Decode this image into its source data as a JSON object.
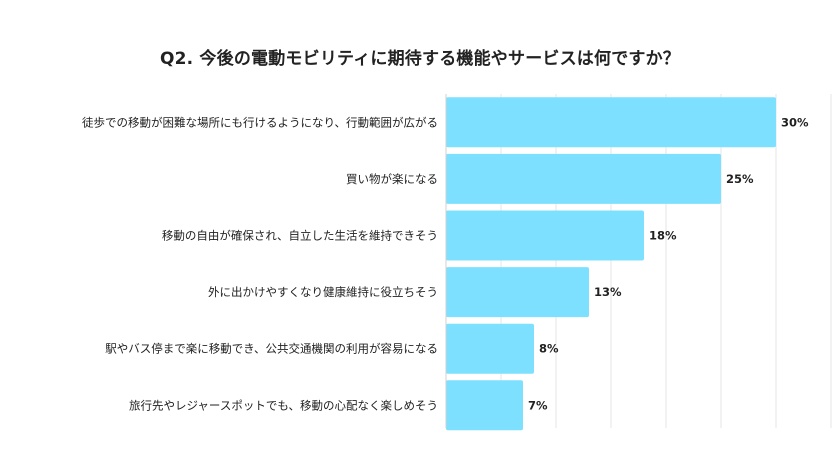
{
  "chart_data": {
    "type": "bar",
    "orientation": "horizontal",
    "title": "Q2. 今後の電動モビリティに期待する機能やサービスは何ですか？",
    "categories": [
      "徒歩での移動が困難な場所にも行けるようになり、行動範囲が広がる",
      "買い物が楽になる",
      "移動の自由が確保され、自立した生活を維持できそう",
      "外に出かけやすくなり健康維持に役立ちそう",
      "駅やバス停まで楽に移動でき、公共交通機関の利用が容易になる",
      "旅行先やレジャースポットでも、移動の心配なく楽しめそう"
    ],
    "values": [
      30,
      25,
      18,
      13,
      8,
      7
    ],
    "value_labels": [
      "30%",
      "25%",
      "18%",
      "13%",
      "8%",
      "7%"
    ],
    "xlim": [
      0,
      35
    ],
    "grid": true,
    "bar_color": "#7de0ff",
    "grid_color": "#e6e6e6"
  }
}
